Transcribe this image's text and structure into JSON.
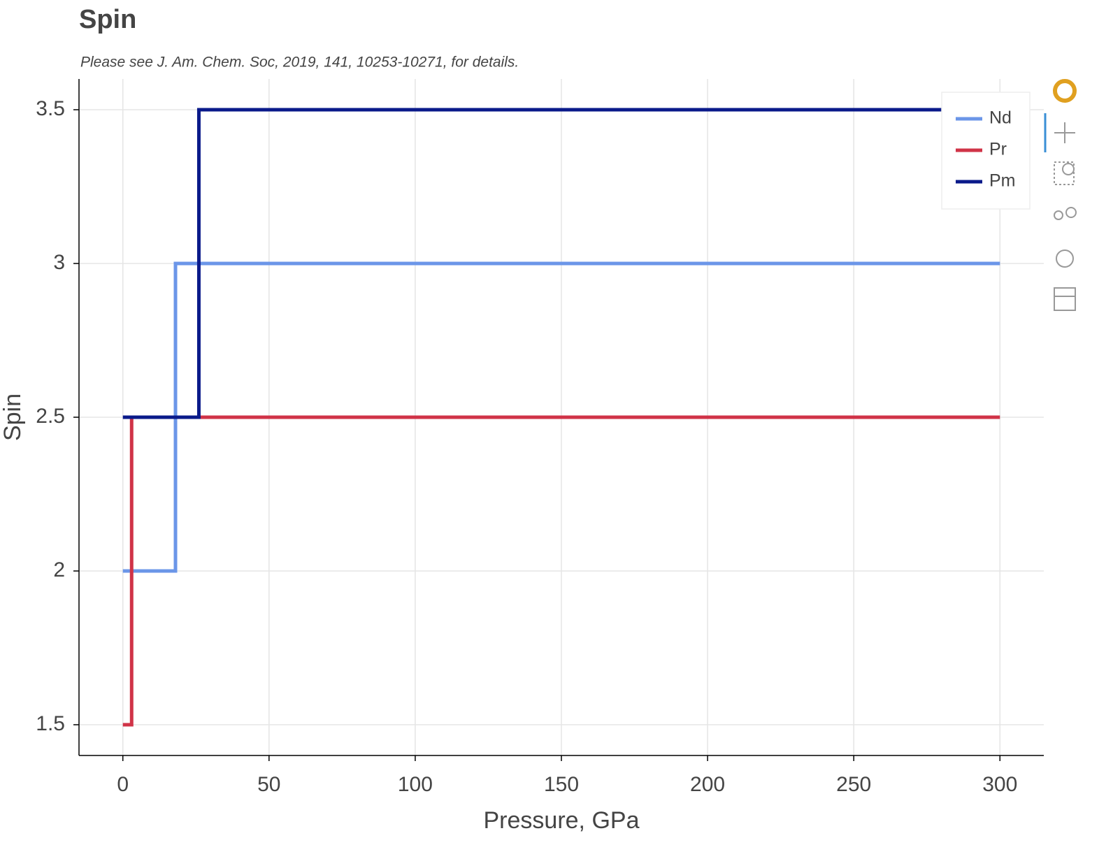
{
  "chart_data": {
    "type": "line",
    "title": "Spin",
    "subtitle": "Please see J. Am. Chem. Soc, 2019, 141, 10253-10271, for details.",
    "x_label": "Pressure, GPa",
    "y_label": "Spin",
    "xlim": [
      -15,
      315
    ],
    "ylim": [
      1.4,
      3.6
    ],
    "xticks": [
      0,
      50,
      100,
      150,
      200,
      250,
      300
    ],
    "yticks": [
      1.5,
      2,
      2.5,
      3,
      3.5
    ],
    "grid": true,
    "legend": "top-right",
    "series": [
      {
        "name": "Nd",
        "color": "#6b96e8",
        "x": [
          0,
          18,
          18,
          300
        ],
        "values": [
          2,
          2,
          3,
          3
        ]
      },
      {
        "name": "Pr",
        "color": "#d03347",
        "x": [
          0,
          3,
          3,
          300
        ],
        "values": [
          1.5,
          1.5,
          2.5,
          2.5
        ]
      },
      {
        "name": "Pm",
        "color": "#0a1a8a",
        "x": [
          0,
          26,
          26,
          300
        ],
        "values": [
          2.5,
          2.5,
          3.5,
          3.5
        ]
      }
    ]
  }
}
